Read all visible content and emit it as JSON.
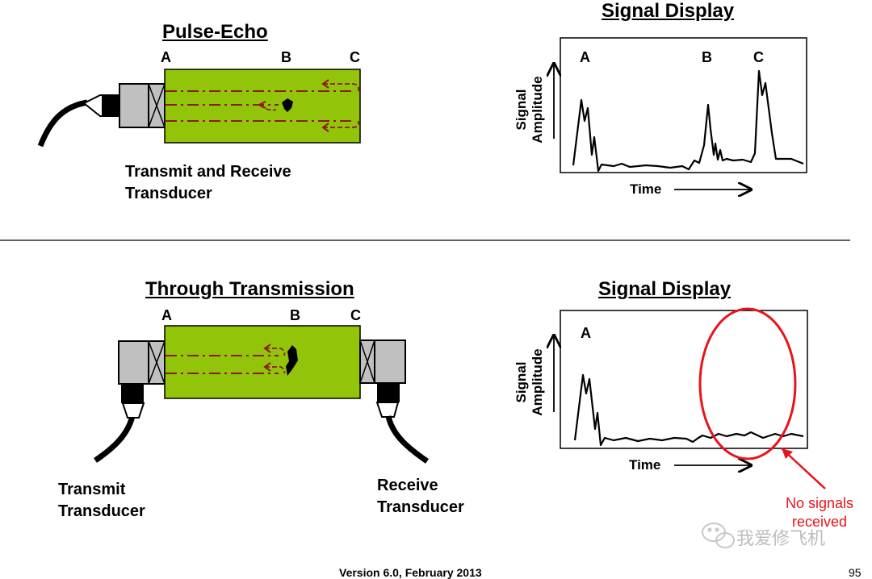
{
  "pulse_echo": {
    "title": "Pulse-Echo",
    "points": [
      "A",
      "B",
      "C"
    ],
    "caption_line1": "Transmit and Receive",
    "caption_line2": "Transducer"
  },
  "pulse_echo_display": {
    "title": "Signal Display",
    "peaks": [
      "A",
      "B",
      "C"
    ],
    "ylabel_line1": "Signal",
    "ylabel_line2": "Amplitude",
    "xlabel": "Time"
  },
  "through_transmission": {
    "title": "Through Transmission",
    "points": [
      "A",
      "B",
      "C"
    ],
    "transmit_line1": "Transmit",
    "transmit_line2": "Transducer",
    "receive_line1": "Receive",
    "receive_line2": "Transducer"
  },
  "through_display": {
    "title": "Signal Display",
    "peaks": [
      "A"
    ],
    "ylabel_line1": "Signal",
    "ylabel_line2": "Amplitude",
    "xlabel": "Time",
    "annotation_line1": "No signals",
    "annotation_line2": "received",
    "annotation_color": "#e8141c"
  },
  "colors": {
    "specimen": "#92c50a",
    "beam": "#8b1a1a",
    "transducer_body": "#c0c0c0"
  },
  "watermark": "我爱修飞机",
  "footer": "Version 6.0, February 2013",
  "page_number": "95"
}
